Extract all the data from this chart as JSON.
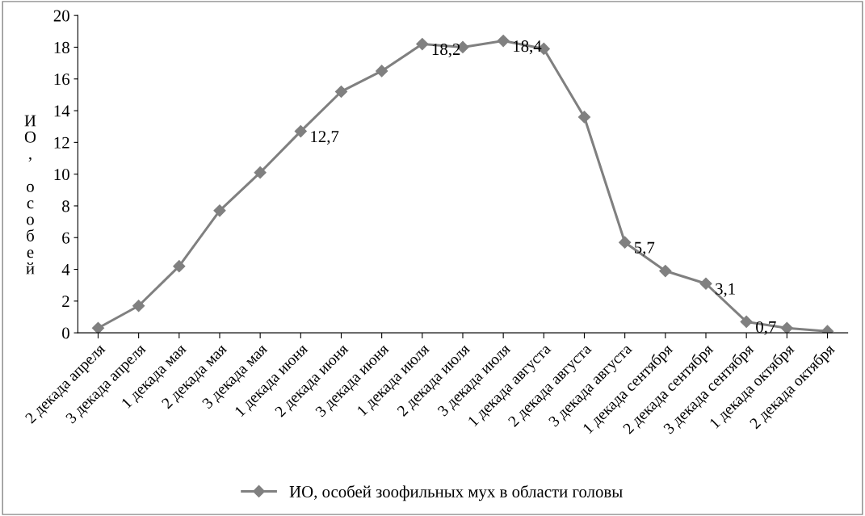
{
  "chart_data": {
    "type": "line",
    "ylabel": "ИО, особей",
    "categories": [
      "2 декада апреля",
      "3 декада апреля",
      "1 декада мая",
      "2 декада мая",
      "3 декада мая",
      "1 декада июня",
      "2 декада июня",
      "3 декада июня",
      "1 декада июля",
      "2 декада июля",
      "3 декада июля",
      "1 декада августа",
      "2 декада августа",
      "3 декада августа",
      "1 декада сентября",
      "2 декада сентября",
      "3 декада сентября",
      "1 декада октября",
      "2 декада октября"
    ],
    "series": [
      {
        "name": "ИО, особей зоофильных мух в области головы",
        "color": "#808080",
        "values": [
          0.3,
          1.7,
          4.2,
          7.7,
          10.1,
          12.7,
          15.2,
          16.5,
          18.2,
          18.0,
          18.4,
          17.9,
          13.6,
          5.7,
          3.9,
          3.1,
          0.7,
          0.3,
          0.1
        ],
        "value_labels": [
          null,
          null,
          null,
          null,
          null,
          "12,7",
          null,
          null,
          "18,2",
          null,
          "18,4",
          null,
          null,
          "5,7",
          null,
          "3,1",
          "0,7",
          null,
          null
        ]
      }
    ],
    "ylim": [
      0,
      20
    ],
    "yticks": [
      0,
      2,
      4,
      6,
      8,
      10,
      12,
      14,
      16,
      18,
      20
    ],
    "grid": false,
    "legend": "bottom",
    "marker": "diamond",
    "line_style": "solid"
  }
}
